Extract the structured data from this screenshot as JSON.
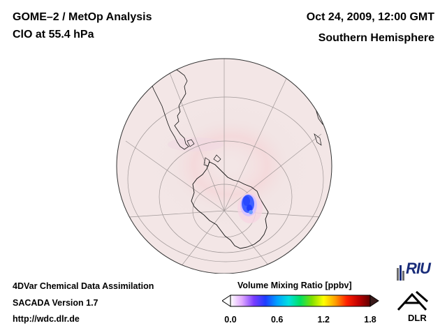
{
  "header": {
    "title_line1": "GOME–2 / MetOp Analysis",
    "title_line2": "ClO at 55.4 hPa",
    "date": "Oct 24, 2009, 12:00 GMT",
    "hemisphere": "Southern Hemisphere"
  },
  "footer": {
    "line1": "4DVar Chemical Data Assimilation",
    "line2": "SACADA Version 1.7",
    "line3": "http://wdc.dlr.de"
  },
  "colorbar": {
    "title": "Volume Mixing Ratio [ppbv]",
    "min": 0.0,
    "max": 1.8,
    "tick_labels": [
      "0.0",
      "0.6",
      "1.2",
      "1.8"
    ],
    "tick_values": [
      0.0,
      0.6,
      1.2,
      1.8
    ],
    "colors": [
      "#ffffff",
      "#e0a8ff",
      "#7a3cff",
      "#1e3cff",
      "#00a0ff",
      "#00e0e0",
      "#00e060",
      "#80e000",
      "#ffff00",
      "#ffa000",
      "#ff2000",
      "#c00000",
      "#600000"
    ],
    "under_color": "#ffffff",
    "over_color": "#3a1a1a"
  },
  "map": {
    "projection": "orthographic",
    "background_color": "#f3e6e6",
    "enhanced_region_color": "#f4dada",
    "coastline_color": "#111111",
    "graticule_color": "#a09898",
    "feature": "ClO enhancement over East Antarctica near 60°E"
  },
  "logos": {
    "riu": "RIU",
    "dlr": "DLR"
  }
}
